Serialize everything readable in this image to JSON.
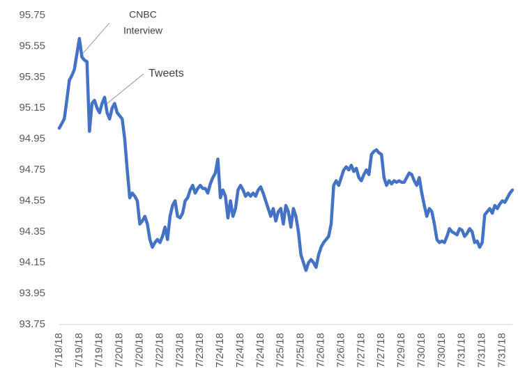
{
  "chart_data": {
    "type": "line",
    "categories": [
      "7/18/18",
      null,
      null,
      null,
      null,
      null,
      null,
      null,
      "7/19/18",
      null,
      null,
      null,
      null,
      null,
      null,
      null,
      "7/19/18",
      null,
      null,
      null,
      null,
      null,
      null,
      null,
      "7/20/18",
      null,
      null,
      null,
      null,
      null,
      null,
      null,
      "7/20/18",
      null,
      null,
      null,
      null,
      null,
      null,
      null,
      "7/22/18",
      null,
      null,
      null,
      null,
      null,
      null,
      null,
      "7/23/18",
      null,
      null,
      null,
      null,
      null,
      null,
      null,
      "7/23/18",
      null,
      null,
      null,
      null,
      null,
      null,
      null,
      "7/24/18",
      null,
      null,
      null,
      null,
      null,
      null,
      null,
      "7/24/18",
      null,
      null,
      null,
      null,
      null,
      null,
      null,
      "7/24/18",
      null,
      null,
      null,
      null,
      null,
      null,
      null,
      "7/25/18",
      null,
      null,
      null,
      null,
      null,
      null,
      null,
      "7/25/18",
      null,
      null,
      null,
      null,
      null,
      null,
      null,
      "7/26/18",
      null,
      null,
      null,
      null,
      null,
      null,
      null,
      "7/26/18",
      null,
      null,
      null,
      null,
      null,
      null,
      null,
      "7/27/18",
      null,
      null,
      null,
      null,
      null,
      null,
      null,
      "7/27/18",
      null,
      null,
      null,
      null,
      null,
      null,
      null,
      "7/29/18",
      null,
      null,
      null,
      null,
      null,
      null,
      null,
      "7/30/18",
      null,
      null,
      null,
      null,
      null,
      null,
      null,
      "7/30/18",
      null,
      null,
      null,
      null,
      null,
      null,
      null,
      "7/31/18",
      null,
      null,
      null,
      null,
      null,
      null,
      null,
      "7/31/18",
      null,
      null,
      null,
      null,
      null,
      null,
      null,
      "7/31/18",
      null,
      null,
      null,
      null
    ],
    "values": [
      95.02,
      95.05,
      95.08,
      95.2,
      95.33,
      95.36,
      95.4,
      95.5,
      95.6,
      95.48,
      95.46,
      95.45,
      95.0,
      95.18,
      95.2,
      95.15,
      95.12,
      95.18,
      95.22,
      95.12,
      95.08,
      95.15,
      95.18,
      95.12,
      95.1,
      95.08,
      94.95,
      94.75,
      94.57,
      94.6,
      94.58,
      94.55,
      94.4,
      94.42,
      94.45,
      94.4,
      94.3,
      94.25,
      94.28,
      94.3,
      94.28,
      94.32,
      94.38,
      94.3,
      94.45,
      94.52,
      94.55,
      94.45,
      94.44,
      94.47,
      94.55,
      94.57,
      94.62,
      94.65,
      94.6,
      94.63,
      94.65,
      94.63,
      94.63,
      94.6,
      94.66,
      94.7,
      94.73,
      94.82,
      94.57,
      94.62,
      94.58,
      94.44,
      94.55,
      94.45,
      94.5,
      94.62,
      94.65,
      94.62,
      94.58,
      94.6,
      94.58,
      94.6,
      94.58,
      94.62,
      94.64,
      94.6,
      94.55,
      94.5,
      94.45,
      94.5,
      94.42,
      94.48,
      94.5,
      94.4,
      94.52,
      94.48,
      94.38,
      94.5,
      94.45,
      94.35,
      94.2,
      94.15,
      94.1,
      94.15,
      94.17,
      94.15,
      94.12,
      94.2,
      94.25,
      94.28,
      94.3,
      94.32,
      94.4,
      94.65,
      94.68,
      94.65,
      94.7,
      94.75,
      94.77,
      94.75,
      94.78,
      94.74,
      94.76,
      94.7,
      94.68,
      94.72,
      94.75,
      94.72,
      94.85,
      94.87,
      94.88,
      94.86,
      94.85,
      94.7,
      94.65,
      94.68,
      94.66,
      94.68,
      94.67,
      94.68,
      94.67,
      94.67,
      94.7,
      94.73,
      94.72,
      94.68,
      94.65,
      94.7,
      94.6,
      94.52,
      94.45,
      94.5,
      94.48,
      94.4,
      94.3,
      94.28,
      94.29,
      94.28,
      94.32,
      94.37,
      94.35,
      94.34,
      94.33,
      94.37,
      94.36,
      94.32,
      94.34,
      94.37,
      94.35,
      94.28,
      94.29,
      94.25,
      94.28,
      94.46,
      94.48,
      94.5,
      94.47,
      94.52,
      94.5,
      94.53,
      94.55,
      94.54,
      94.57,
      94.6,
      94.62
    ],
    "color": "#4472c4",
    "ylim": [
      93.75,
      95.75
    ],
    "yticks": [
      93.75,
      93.95,
      94.15,
      94.35,
      94.55,
      94.75,
      94.95,
      95.15,
      95.35,
      95.55,
      95.75
    ],
    "grid": false,
    "annotations": [
      [
        "CNBC",
        "Interview"
      ],
      [
        "Tweets"
      ]
    ]
  }
}
